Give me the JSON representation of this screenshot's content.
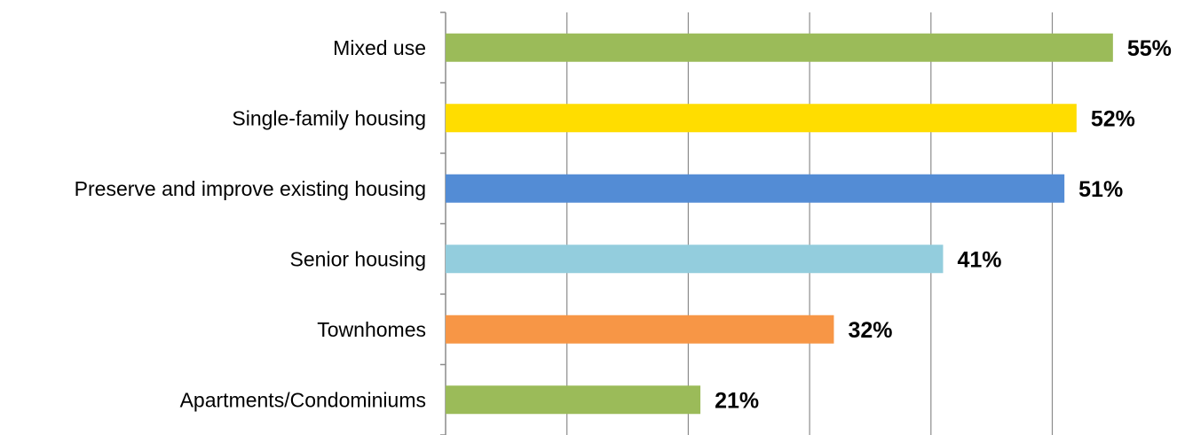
{
  "chart_data": {
    "type": "bar",
    "orientation": "horizontal",
    "categories": [
      "Mixed use",
      "Single-family housing",
      "Preserve and improve existing housing",
      "Senior housing",
      "Townhomes",
      "Apartments/Condominiums"
    ],
    "values": [
      55,
      52,
      51,
      41,
      32,
      21
    ],
    "value_labels": [
      "55%",
      "52%",
      "51%",
      "41%",
      "32%",
      "21%"
    ],
    "colors": [
      "#9bbb59",
      "#ffdd00",
      "#538cd5",
      "#93cddd",
      "#f79646",
      "#9bbb59"
    ],
    "xlim": [
      0,
      60
    ],
    "x_gridlines": [
      10,
      20,
      30,
      40,
      50
    ],
    "grid": true,
    "legend": "none",
    "title": "",
    "xlabel": "",
    "ylabel": ""
  }
}
